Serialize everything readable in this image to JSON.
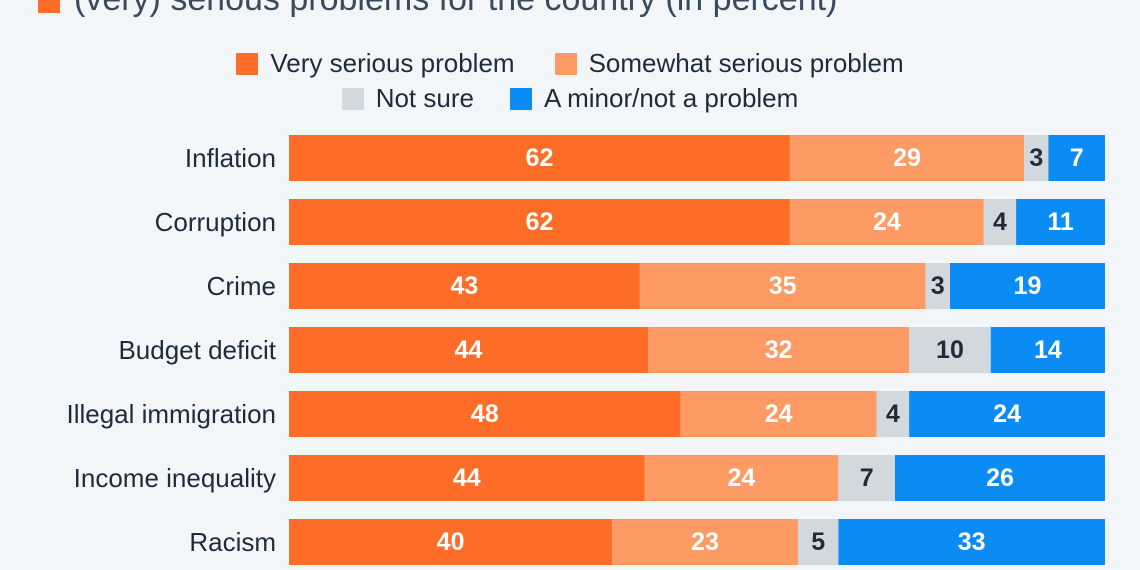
{
  "chart_data": {
    "type": "bar",
    "orientation": "horizontal",
    "stacked": true,
    "title": "(very) serious problems for the country (in percent)",
    "categories": [
      "Inflation",
      "Corruption",
      "Crime",
      "Budget deficit",
      "Illegal immigration",
      "Income inequality",
      "Racism"
    ],
    "series": [
      {
        "name": "Very serious problem",
        "color": "#fe6d27",
        "label_color": "#ffffff",
        "values": [
          62,
          62,
          43,
          44,
          48,
          44,
          40
        ]
      },
      {
        "name": "Somewhat serious problem",
        "color": "#fe9a64",
        "label_color": "#ffffff",
        "values": [
          29,
          24,
          35,
          32,
          24,
          24,
          23
        ]
      },
      {
        "name": "Not sure",
        "color": "#d1d9df",
        "label_color": "#1e2b3a",
        "values": [
          3,
          4,
          3,
          10,
          4,
          7,
          5
        ]
      },
      {
        "name": "A minor/not a problem",
        "color": "#0a8cf4",
        "label_color": "#ffffff",
        "values": [
          7,
          11,
          19,
          14,
          24,
          26,
          33
        ]
      }
    ],
    "xlim": [
      0,
      100
    ],
    "legend": "top-center"
  }
}
